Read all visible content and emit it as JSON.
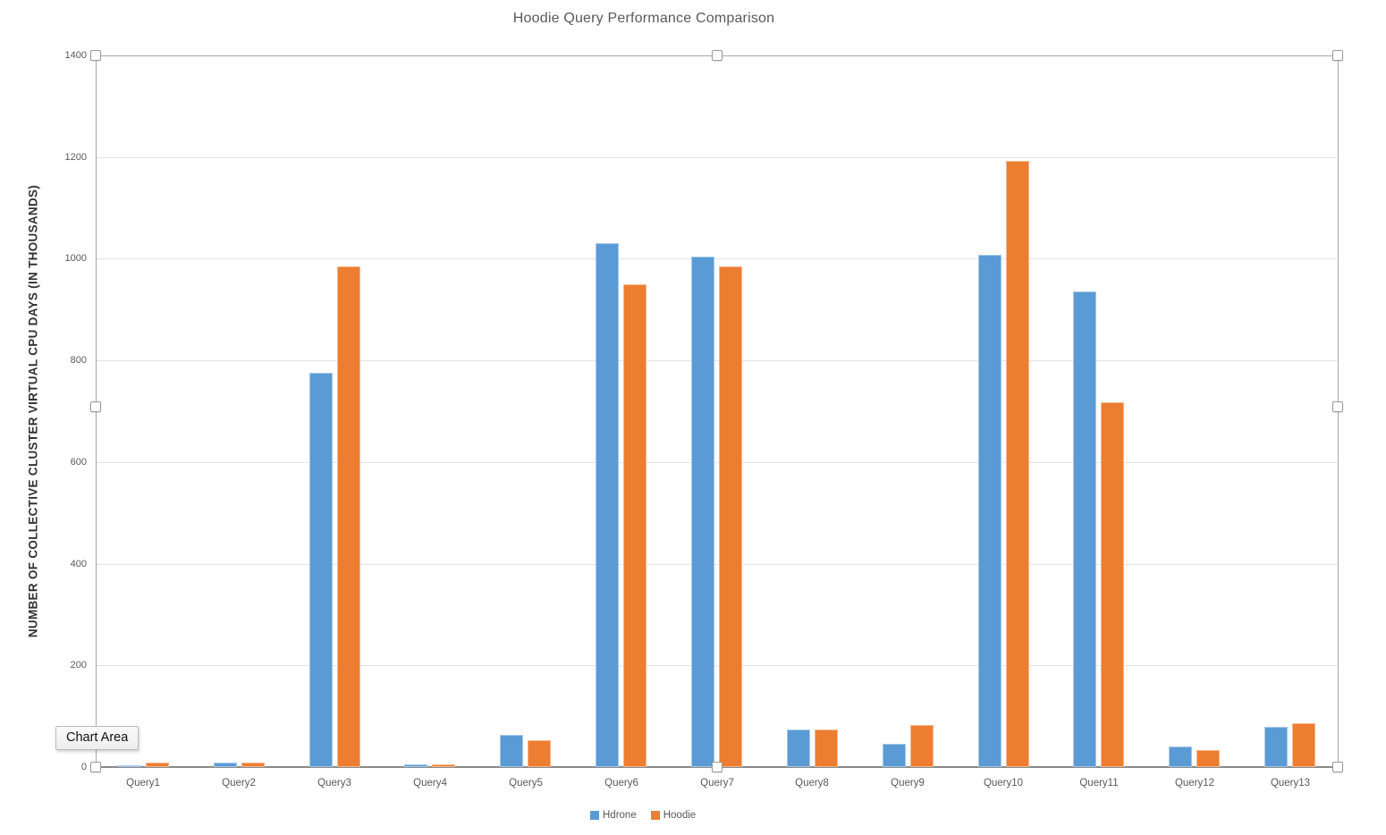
{
  "chart_data": {
    "type": "bar",
    "title": "Hoodie Query Performance Comparison",
    "ylabel": "NUMBER OF COLLECTIVE CLUSTER VIRTUAL CPU DAYS (IN THOUSANDS)",
    "xlabel": "",
    "categories": [
      "Query1",
      "Query2",
      "Query3",
      "Query4",
      "Query5",
      "Query6",
      "Query7",
      "Query8",
      "Query9",
      "Query10",
      "Query11",
      "Query12",
      "Query13"
    ],
    "series": [
      {
        "name": "Hdrone",
        "color": "#5b9bd5",
        "values": [
          4,
          9,
          775,
          5,
          63,
          1030,
          1005,
          73,
          46,
          1008,
          935,
          40,
          79
        ]
      },
      {
        "name": "Hoodie",
        "color": "#ed7d31",
        "values": [
          9,
          8,
          985,
          6,
          52,
          950,
          985,
          73,
          83,
          1193,
          718,
          33,
          86
        ]
      }
    ],
    "ylim": [
      0,
      1400
    ],
    "yticks": [
      0,
      200,
      400,
      600,
      800,
      1000,
      1200,
      1400
    ],
    "grid": true,
    "legend_position": "bottom"
  },
  "selection": {
    "tooltip_label": "Chart Area"
  }
}
